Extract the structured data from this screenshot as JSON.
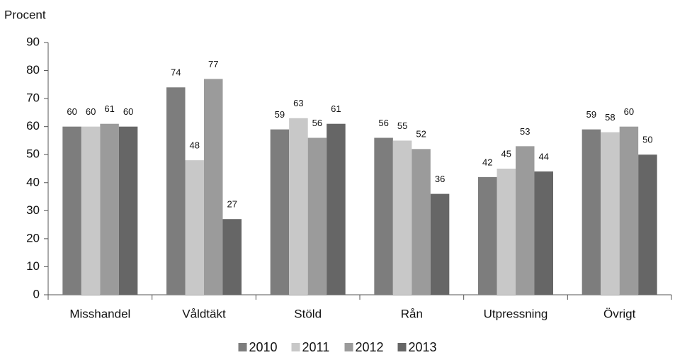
{
  "chart_data": {
    "type": "bar",
    "y_label": "Procent",
    "categories": [
      "Misshandel",
      "Våldtäkt",
      "Stöld",
      "Rån",
      "Utpressning",
      "Övrigt"
    ],
    "series": [
      {
        "name": "2010",
        "color": "#7d7d7d",
        "values": [
          60,
          74,
          59,
          56,
          42,
          59
        ]
      },
      {
        "name": "2011",
        "color": "#c8c8c8",
        "values": [
          60,
          48,
          63,
          55,
          45,
          58
        ]
      },
      {
        "name": "2012",
        "color": "#9b9b9b",
        "values": [
          61,
          77,
          56,
          52,
          53,
          60
        ]
      },
      {
        "name": "2013",
        "color": "#666666",
        "values": [
          60,
          27,
          61,
          36,
          44,
          50
        ]
      }
    ],
    "ylim": [
      0,
      90
    ],
    "yticks": [
      0,
      10,
      20,
      30,
      40,
      50,
      60,
      70,
      80,
      90
    ],
    "grid": false
  }
}
